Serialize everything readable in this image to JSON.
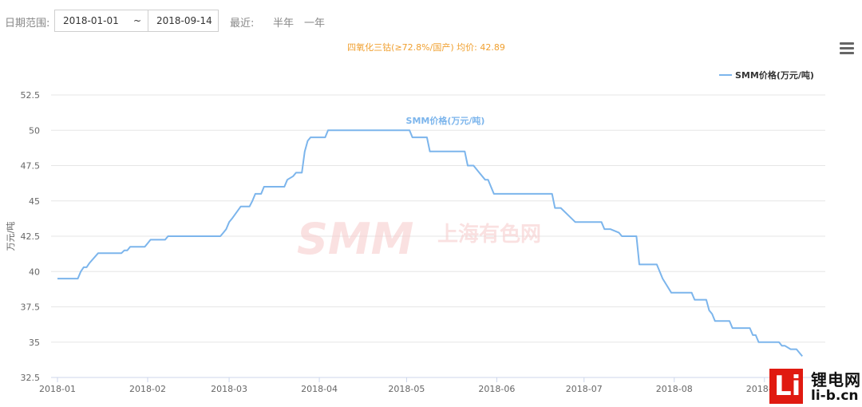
{
  "toolbar": {
    "date_range_label": "日期范围:",
    "start_date": "2018-01-01",
    "separator": "~",
    "end_date": "2018-09-14",
    "recent_label": "最近:",
    "half_year": "半年",
    "one_year": "一年"
  },
  "menu_icon": "hamburger-menu-icon",
  "watermark": {
    "brand": "SMM",
    "cn": "上海有色网"
  },
  "corner_logo": {
    "cn": "锂电网",
    "en": "li-b.cn"
  },
  "colors": {
    "line": "#7cb5ec",
    "title": "#f0a030",
    "grid": "#e6e6e6",
    "axis_text": "#666666",
    "watermark": "#f6c9c9",
    "logo_red": "#e01a10"
  },
  "chart_data": {
    "type": "line",
    "title": "四氧化三钴(≥72.8%/国产) 均价: 42.89",
    "ylabel": "万元/吨",
    "xlabel": "",
    "ylim": [
      32.5,
      52.5
    ],
    "yticks": [
      "32.5",
      "35",
      "37.5",
      "40",
      "42.5",
      "45",
      "47.5",
      "50",
      "52.5"
    ],
    "xlim": [
      "2018-01-01",
      "2018-09-14"
    ],
    "xticks": [
      "2018-01",
      "2018-02",
      "2018-03",
      "2018-04",
      "2018-05",
      "2018-06",
      "2018-07",
      "2018-08",
      "2018-09"
    ],
    "grid": true,
    "legend_position": "top-right",
    "series": [
      {
        "name": "SMM价格(万元/吨)",
        "peak_label": "SMM价格(万元/吨)",
        "points": [
          [
            "2018-01-01",
            39.5
          ],
          [
            "2018-01-08",
            39.5
          ],
          [
            "2018-01-09",
            40.0
          ],
          [
            "2018-01-10",
            40.3
          ],
          [
            "2018-01-11",
            40.3
          ],
          [
            "2018-01-12",
            40.6
          ],
          [
            "2018-01-15",
            41.3
          ],
          [
            "2018-01-23",
            41.3
          ],
          [
            "2018-01-24",
            41.5
          ],
          [
            "2018-01-25",
            41.5
          ],
          [
            "2018-01-26",
            41.75
          ],
          [
            "2018-01-31",
            41.75
          ],
          [
            "2018-02-01",
            42.0
          ],
          [
            "2018-02-02",
            42.25
          ],
          [
            "2018-02-07",
            42.25
          ],
          [
            "2018-02-08",
            42.5
          ],
          [
            "2018-02-26",
            42.5
          ],
          [
            "2018-02-27",
            42.75
          ],
          [
            "2018-02-28",
            43.0
          ],
          [
            "2018-03-01",
            43.5
          ],
          [
            "2018-03-02",
            43.75
          ],
          [
            "2018-03-05",
            44.6
          ],
          [
            "2018-03-08",
            44.6
          ],
          [
            "2018-03-09",
            45.0
          ],
          [
            "2018-03-10",
            45.5
          ],
          [
            "2018-03-12",
            45.5
          ],
          [
            "2018-03-13",
            46.0
          ],
          [
            "2018-03-20",
            46.0
          ],
          [
            "2018-03-21",
            46.5
          ],
          [
            "2018-03-23",
            46.75
          ],
          [
            "2018-03-24",
            47.0
          ],
          [
            "2018-03-26",
            47.0
          ],
          [
            "2018-03-27",
            48.5
          ],
          [
            "2018-03-28",
            49.25
          ],
          [
            "2018-03-29",
            49.5
          ],
          [
            "2018-04-03",
            49.5
          ],
          [
            "2018-04-04",
            50.0
          ],
          [
            "2018-04-30",
            50.0
          ],
          [
            "2018-05-02",
            50.0
          ],
          [
            "2018-05-03",
            49.5
          ],
          [
            "2018-05-08",
            49.5
          ],
          [
            "2018-05-09",
            48.5
          ],
          [
            "2018-05-21",
            48.5
          ],
          [
            "2018-05-22",
            47.5
          ],
          [
            "2018-05-24",
            47.5
          ],
          [
            "2018-05-26",
            47.0
          ],
          [
            "2018-05-28",
            46.5
          ],
          [
            "2018-05-29",
            46.5
          ],
          [
            "2018-05-31",
            45.5
          ],
          [
            "2018-06-20",
            45.5
          ],
          [
            "2018-06-21",
            44.5
          ],
          [
            "2018-06-23",
            44.5
          ],
          [
            "2018-06-26",
            43.9
          ],
          [
            "2018-06-28",
            43.5
          ],
          [
            "2018-07-07",
            43.5
          ],
          [
            "2018-07-08",
            43.0
          ],
          [
            "2018-07-10",
            43.0
          ],
          [
            "2018-07-13",
            42.75
          ],
          [
            "2018-07-14",
            42.5
          ],
          [
            "2018-07-19",
            42.5
          ],
          [
            "2018-07-20",
            40.5
          ],
          [
            "2018-07-26",
            40.5
          ],
          [
            "2018-07-28",
            39.5
          ],
          [
            "2018-07-31",
            38.5
          ],
          [
            "2018-08-07",
            38.5
          ],
          [
            "2018-08-08",
            38.0
          ],
          [
            "2018-08-12",
            38.0
          ],
          [
            "2018-08-13",
            37.25
          ],
          [
            "2018-08-14",
            37.0
          ],
          [
            "2018-08-15",
            36.5
          ],
          [
            "2018-08-20",
            36.5
          ],
          [
            "2018-08-21",
            36.0
          ],
          [
            "2018-08-27",
            36.0
          ],
          [
            "2018-08-28",
            35.5
          ],
          [
            "2018-08-29",
            35.5
          ],
          [
            "2018-08-30",
            35.0
          ],
          [
            "2018-09-06",
            35.0
          ],
          [
            "2018-09-07",
            34.75
          ],
          [
            "2018-09-08",
            34.75
          ],
          [
            "2018-09-10",
            34.5
          ],
          [
            "2018-09-12",
            34.5
          ],
          [
            "2018-09-14",
            34.0
          ]
        ]
      }
    ]
  }
}
